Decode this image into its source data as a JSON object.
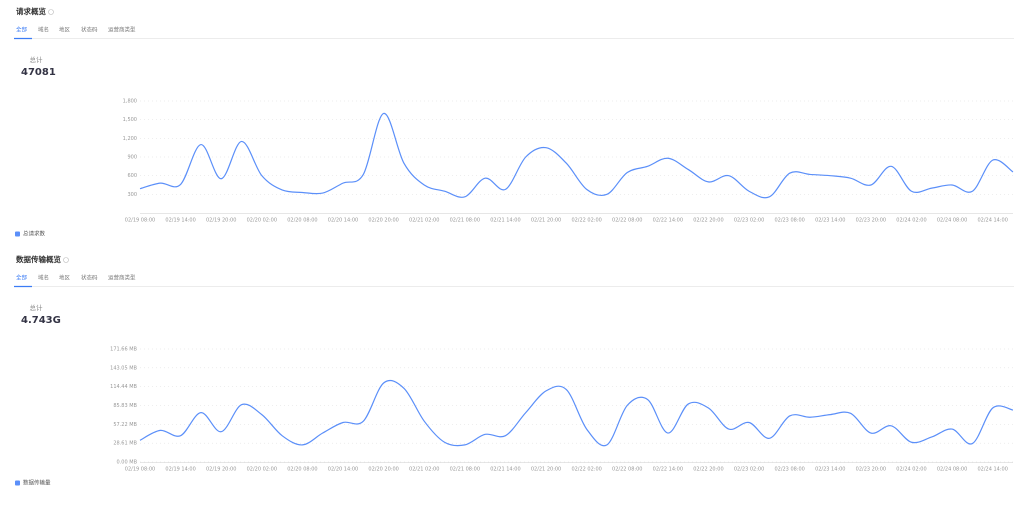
{
  "chart_data": [
    {
      "type": "line",
      "title": "请求概览",
      "tabs": [
        "全部",
        "域名",
        "地区",
        "状态码",
        "运营商类型"
      ],
      "active_tab": 0,
      "total_label": "总计",
      "total": "47081",
      "grid": true,
      "legend": "bottom-left",
      "categories": [
        "02/19 08:00",
        null,
        "02/19 14:00",
        null,
        "02/19 20:00",
        null,
        "02/20 02:00",
        null,
        "02/20 08:00",
        null,
        "02/20 14:00",
        null,
        "02/20 20:00",
        null,
        "02/21 02:00",
        null,
        "02/21 08:00",
        null,
        "02/21 14:00",
        null,
        "02/21 20:00",
        null,
        "02/22 02:00",
        null,
        "02/22 08:00",
        null,
        "02/22 14:00",
        null,
        "02/22 20:00",
        null,
        "02/23 02:00",
        null,
        "02/23 08:00",
        null,
        "02/23 14:00",
        null,
        "02/23 20:00",
        null,
        "02/24 02:00",
        null,
        "02/24 08:00",
        null,
        "02/24 14:00",
        null
      ],
      "ylim": [
        0,
        1800
      ],
      "yticks": [
        300,
        600,
        900,
        {
          "value": 1200,
          "label": "1,200"
        },
        {
          "value": 1500,
          "label": "1,500"
        },
        {
          "value": 1800,
          "label": "1,800"
        }
      ],
      "series": [
        {
          "name": "总请求数",
          "color": "#5b8ff9",
          "values": [
            390,
            480,
            460,
            1100,
            550,
            1150,
            600,
            370,
            330,
            320,
            480,
            620,
            1600,
            800,
            450,
            350,
            260,
            560,
            380,
            900,
            1050,
            800,
            380,
            300,
            650,
            750,
            880,
            700,
            500,
            600,
            350,
            260,
            640,
            620,
            600,
            560,
            450,
            750,
            350,
            400,
            450,
            350,
            850,
            660
          ]
        }
      ]
    },
    {
      "type": "line",
      "title": "数据传输概览",
      "tabs": [
        "全部",
        "域名",
        "地区",
        "状态码",
        "运营商类型"
      ],
      "active_tab": 0,
      "total_label": "总计",
      "total": "4.743G",
      "grid": true,
      "legend": "bottom-left",
      "categories": [
        "02/19 08:00",
        null,
        "02/19 14:00",
        null,
        "02/19 20:00",
        null,
        "02/20 02:00",
        null,
        "02/20 08:00",
        null,
        "02/20 14:00",
        null,
        "02/20 20:00",
        null,
        "02/21 02:00",
        null,
        "02/21 08:00",
        null,
        "02/21 14:00",
        null,
        "02/21 20:00",
        null,
        "02/22 02:00",
        null,
        "02/22 08:00",
        null,
        "02/22 14:00",
        null,
        "02/22 20:00",
        null,
        "02/23 02:00",
        null,
        "02/23 08:00",
        null,
        "02/23 14:00",
        null,
        "02/23 20:00",
        null,
        "02/24 02:00",
        null,
        "02/24 08:00",
        null,
        "02/24 14:00",
        null
      ],
      "ylim": [
        0,
        171.66
      ],
      "yticks": [
        {
          "value": 0,
          "label": "0.00 MB"
        },
        {
          "value": 28.61,
          "label": "28.61 MB"
        },
        {
          "value": 57.22,
          "label": "57.22 MB"
        },
        {
          "value": 85.83,
          "label": "85.83 MB"
        },
        {
          "value": 114.44,
          "label": "114.44 MB"
        },
        {
          "value": 143.05,
          "label": "143.05 MB"
        },
        {
          "value": 171.66,
          "label": "171.66 MB"
        }
      ],
      "series": [
        {
          "name": "数据传输量",
          "color": "#5b8ff9",
          "values": [
            33,
            48,
            40,
            75,
            46,
            87,
            72,
            40,
            26,
            44,
            60,
            62,
            120,
            112,
            62,
            30,
            26,
            42,
            40,
            75,
            108,
            110,
            50,
            26,
            86,
            95,
            44,
            88,
            82,
            50,
            60,
            36,
            70,
            68,
            72,
            74,
            44,
            55,
            30,
            38,
            50,
            28,
            82,
            79
          ]
        }
      ]
    }
  ]
}
